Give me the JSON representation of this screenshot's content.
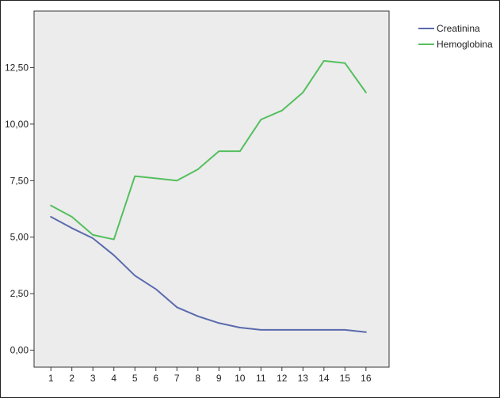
{
  "chart_data": {
    "type": "line",
    "title": "",
    "xlabel": "",
    "ylabel": "",
    "x": [
      1,
      2,
      3,
      4,
      5,
      6,
      7,
      8,
      9,
      10,
      11,
      12,
      13,
      14,
      15,
      16
    ],
    "x_tick_labels": [
      "1",
      "2",
      "3",
      "4",
      "5",
      "6",
      "7",
      "8",
      "9",
      "10",
      "11",
      "12",
      "13",
      "14",
      "15",
      "16"
    ],
    "xlim": [
      0.2,
      17.1
    ],
    "ylim": [
      -0.75,
      15.0
    ],
    "y_ticks": [
      0.0,
      2.5,
      5.0,
      7.5,
      10.0,
      12.5
    ],
    "y_tick_labels": [
      "0,00",
      "2,50",
      "5,00",
      "7,50",
      "10,00",
      "12,50"
    ],
    "grid": false,
    "plot_background": "#ececec",
    "legend_position": "outside-top-right",
    "series": [
      {
        "name": "Creatinina",
        "color": "#5a6aae",
        "values": [
          5.9,
          5.4,
          4.95,
          4.2,
          3.3,
          2.7,
          1.9,
          1.5,
          1.2,
          1.0,
          0.9,
          0.9,
          0.9,
          0.9,
          0.9,
          0.8
        ]
      },
      {
        "name": "Hemoglobina",
        "color": "#54bf5e",
        "values": [
          6.4,
          5.9,
          5.1,
          4.9,
          7.7,
          7.6,
          7.5,
          8.0,
          8.8,
          8.8,
          10.2,
          10.6,
          11.4,
          12.8,
          12.7,
          11.4
        ]
      }
    ]
  }
}
